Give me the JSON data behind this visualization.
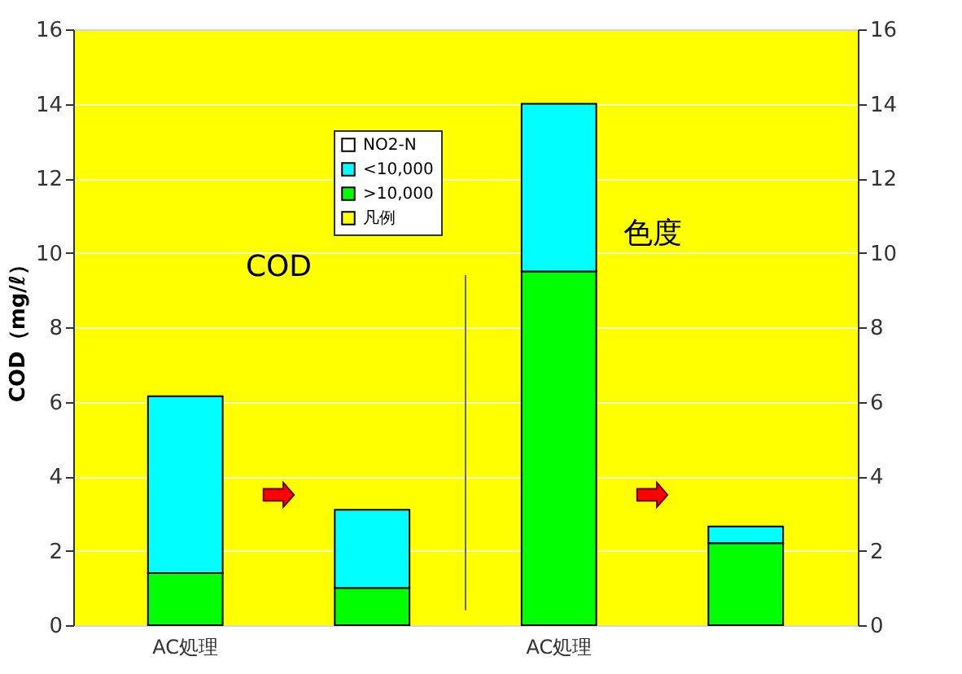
{
  "chart_data": {
    "type": "bar",
    "stacked": true,
    "ylabel": "COD（mg/ℓ）",
    "categories": [
      "AC処理",
      null,
      "AC処理",
      null
    ],
    "series": [
      {
        "name": "凡例",
        "color": "#ffff00",
        "values": [
          null,
          null,
          null,
          null
        ]
      },
      {
        "name": ">10,000",
        "color": "#00ff00",
        "values": [
          1.4,
          1.0,
          9.5,
          2.2
        ]
      },
      {
        "name": "<10,000",
        "color": "#00ffff",
        "values": [
          4.75,
          2.1,
          4.5,
          0.45
        ]
      },
      {
        "name": "NO2-N",
        "color": "#ffffff",
        "values": [
          null,
          null,
          null,
          null
        ]
      }
    ],
    "ylim": [
      0,
      16
    ],
    "yticks": [
      0,
      2,
      4,
      6,
      8,
      10,
      12,
      14,
      16
    ],
    "y2lim": [
      0,
      16
    ],
    "y2ticks": [
      0,
      2,
      4,
      6,
      8,
      10,
      12,
      14,
      16
    ],
    "grid": "y",
    "legend": "top left",
    "annotations": [
      "COD",
      "色度"
    ]
  }
}
